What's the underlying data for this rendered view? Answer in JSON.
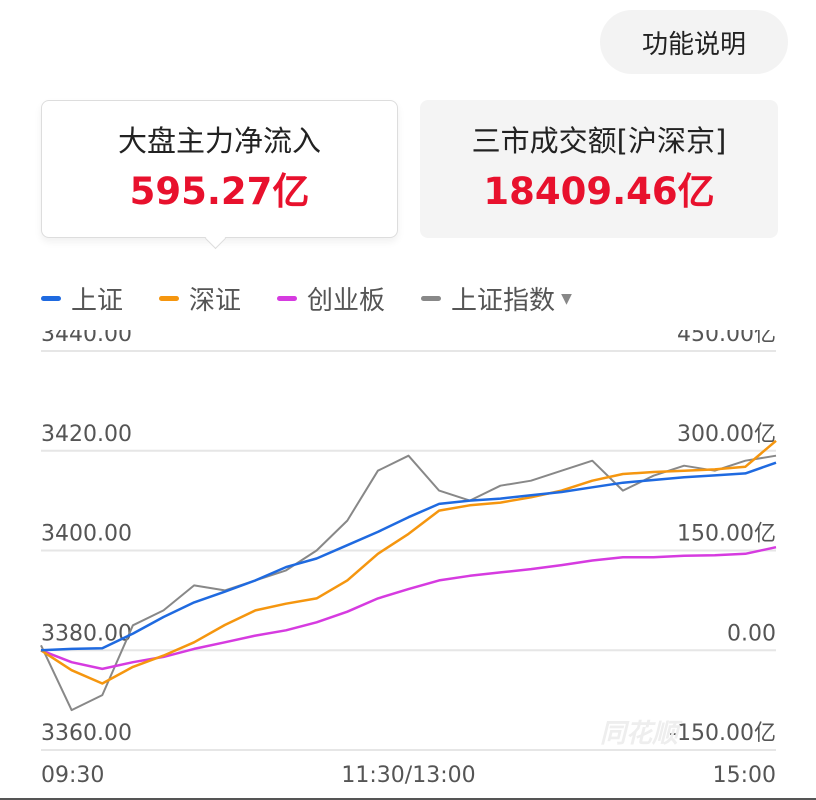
{
  "header": {
    "help_button": "功能说明"
  },
  "cards": [
    {
      "title": "大盘主力净流入",
      "value": "595.27亿"
    },
    {
      "title": "三市成交额[沪深京]",
      "value": "18409.46亿"
    }
  ],
  "legend": {
    "dropdown_caret": "▼"
  },
  "watermark": "同花顺",
  "chart_data": {
    "type": "line",
    "x": [
      "09:30",
      "09:40",
      "09:50",
      "10:00",
      "10:10",
      "10:20",
      "10:30",
      "10:40",
      "10:50",
      "11:00",
      "11:10",
      "11:20",
      "11:30",
      "13:10",
      "13:20",
      "13:30",
      "13:40",
      "13:50",
      "14:00",
      "14:10",
      "14:20",
      "14:30",
      "14:40",
      "14:50",
      "15:00"
    ],
    "x_tick_labels": [
      "09:30",
      "11:30/13:00",
      "15:00"
    ],
    "y_left": {
      "ylim": [
        3360,
        3440
      ],
      "tick_labels": [
        "3440.00",
        "3420.00",
        "3400.00",
        "3380.00",
        "3360.00"
      ]
    },
    "y_right": {
      "ylim": [
        -150,
        450
      ],
      "unit": "亿",
      "tick_labels": [
        "450.00亿",
        "300.00亿",
        "150.00亿",
        "0.00",
        "-150.00亿"
      ]
    },
    "grid": true,
    "legend_position": "top-left",
    "series": [
      {
        "name": "上证",
        "color": "#1f6ae0",
        "axis": "right",
        "values": [
          0,
          2,
          3,
          25,
          50,
          72,
          88,
          105,
          125,
          138,
          158,
          178,
          200,
          220,
          225,
          228,
          233,
          238,
          245,
          252,
          256,
          260,
          263,
          266,
          282
        ]
      },
      {
        "name": "深证",
        "color": "#f5960f",
        "axis": "right",
        "values": [
          0,
          -30,
          -50,
          -25,
          -8,
          12,
          38,
          60,
          70,
          78,
          105,
          145,
          175,
          210,
          218,
          222,
          230,
          240,
          255,
          265,
          268,
          270,
          272,
          276,
          315
        ]
      },
      {
        "name": "创业板",
        "color": "#d63be0",
        "axis": "right",
        "values": [
          0,
          -18,
          -28,
          -18,
          -10,
          2,
          12,
          22,
          30,
          42,
          58,
          78,
          92,
          105,
          112,
          117,
          122,
          128,
          135,
          140,
          140,
          142,
          143,
          145,
          155
        ]
      },
      {
        "name": "上证指数",
        "color": "#888888",
        "axis": "left",
        "values": [
          3381,
          3368,
          3371,
          3385,
          3388,
          3393,
          3392,
          3394,
          3396,
          3400,
          3406,
          3416,
          3419,
          3412,
          3410,
          3413,
          3414,
          3416,
          3418,
          3412,
          3415,
          3417,
          3416,
          3418,
          3419
        ]
      }
    ]
  }
}
